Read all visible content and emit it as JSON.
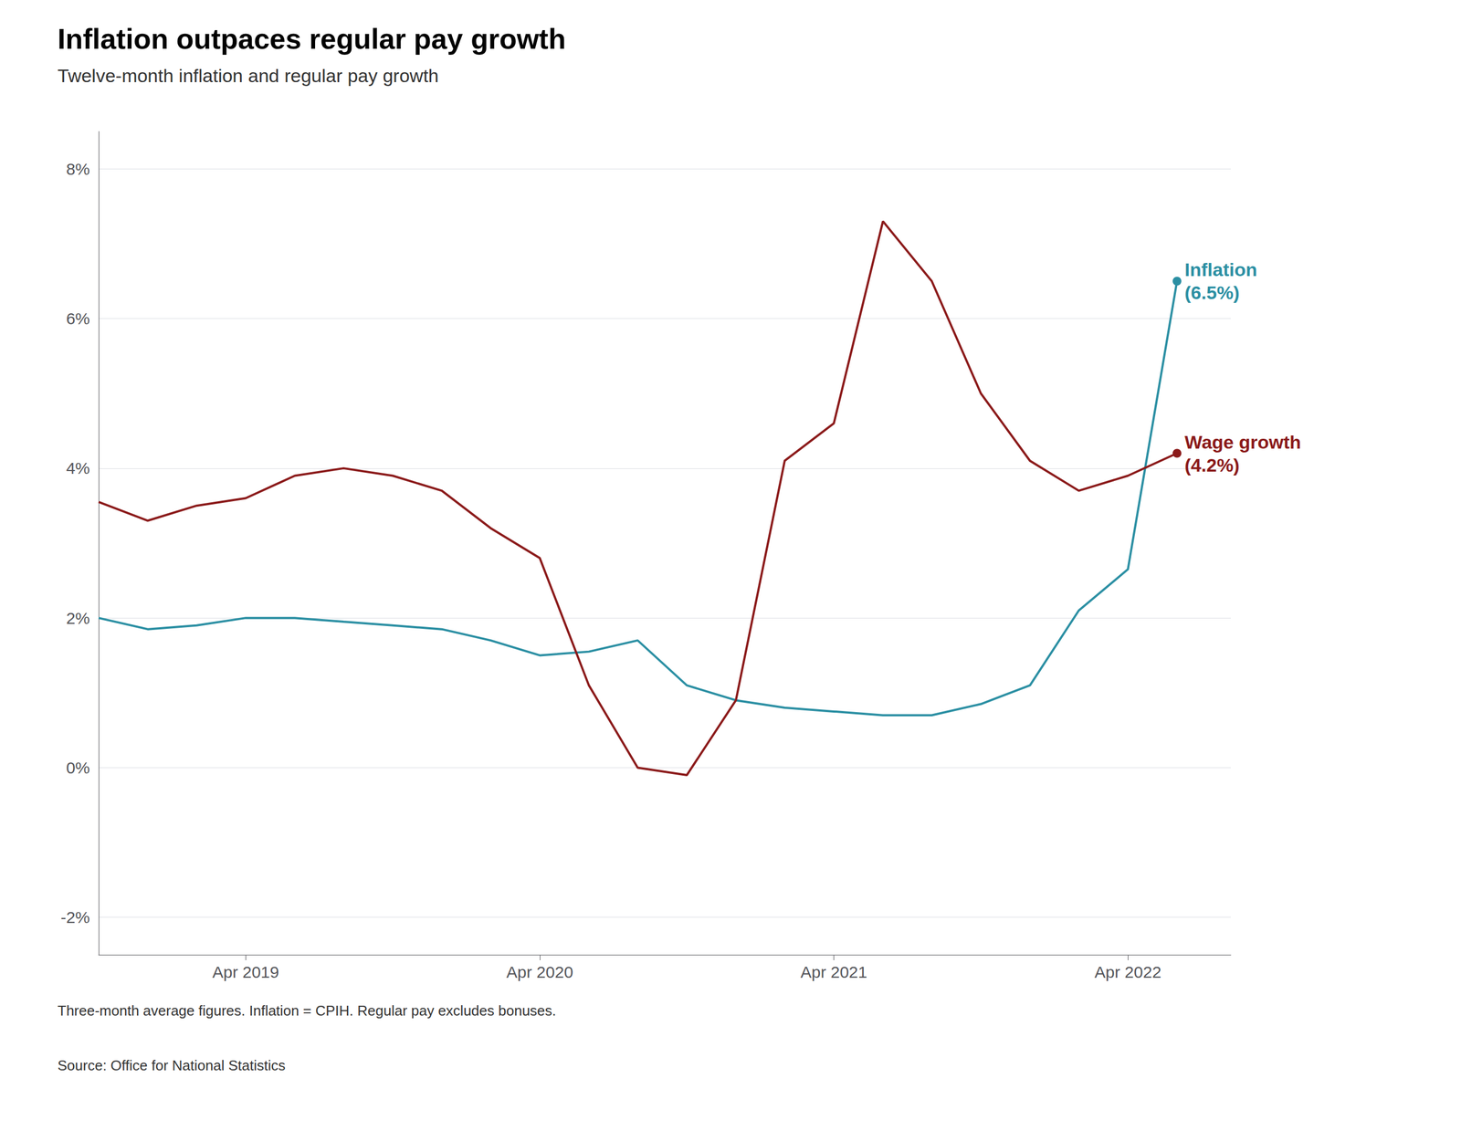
{
  "chart_data": {
    "type": "line",
    "title": "Inflation outpaces regular pay growth",
    "subtitle": "Twelve-month inflation and regular pay growth",
    "footnote": "Three-month average figures. Inflation = CPIH. Regular pay excludes bonuses.",
    "source": "Source: Office for National Statistics",
    "x": [
      2018.75,
      2018.917,
      2019.083,
      2019.25,
      2019.417,
      2019.583,
      2019.75,
      2019.917,
      2020.083,
      2020.25,
      2020.417,
      2020.583,
      2020.75,
      2020.917,
      2021.083,
      2021.25,
      2021.417,
      2021.583,
      2021.75,
      2021.917,
      2022.083,
      2022.25,
      2022.417
    ],
    "series": [
      {
        "name": "Inflation\n(6.5%)",
        "color": "#2b8fa3",
        "values": [
          2.0,
          1.85,
          1.9,
          2.0,
          2.0,
          1.95,
          1.9,
          1.85,
          1.7,
          1.5,
          1.55,
          1.7,
          1.1,
          0.9,
          0.8,
          0.75,
          0.7,
          0.7,
          0.85,
          1.1,
          2.1,
          2.65,
          6.5
        ]
      },
      {
        "name": "Wage growth\n(4.2%)",
        "color": "#8b1a1a",
        "values": [
          3.55,
          3.3,
          3.5,
          3.6,
          3.9,
          4.0,
          3.9,
          3.7,
          3.2,
          2.8,
          1.1,
          0.0,
          -0.1,
          0.9,
          4.1,
          4.6,
          7.3,
          6.5,
          5.0,
          4.1,
          3.7,
          3.9,
          4.2
        ]
      }
    ],
    "xlim": [
      2018.75,
      2022.6
    ],
    "xticks": [
      {
        "value": 2019.25,
        "label": "Apr 2019"
      },
      {
        "value": 2020.25,
        "label": "Apr 2020"
      },
      {
        "value": 2021.25,
        "label": "Apr 2021"
      },
      {
        "value": 2022.25,
        "label": "Apr 2022"
      }
    ],
    "ylim": [
      -2.5,
      8.5
    ],
    "yticks": [
      {
        "value": -2,
        "label": "-2%"
      },
      {
        "value": 0,
        "label": "0%"
      },
      {
        "value": 2,
        "label": "2%"
      },
      {
        "value": 4,
        "label": "4%"
      },
      {
        "value": 6,
        "label": "6%"
      },
      {
        "value": 8,
        "label": "8%"
      }
    ],
    "grid": true
  }
}
